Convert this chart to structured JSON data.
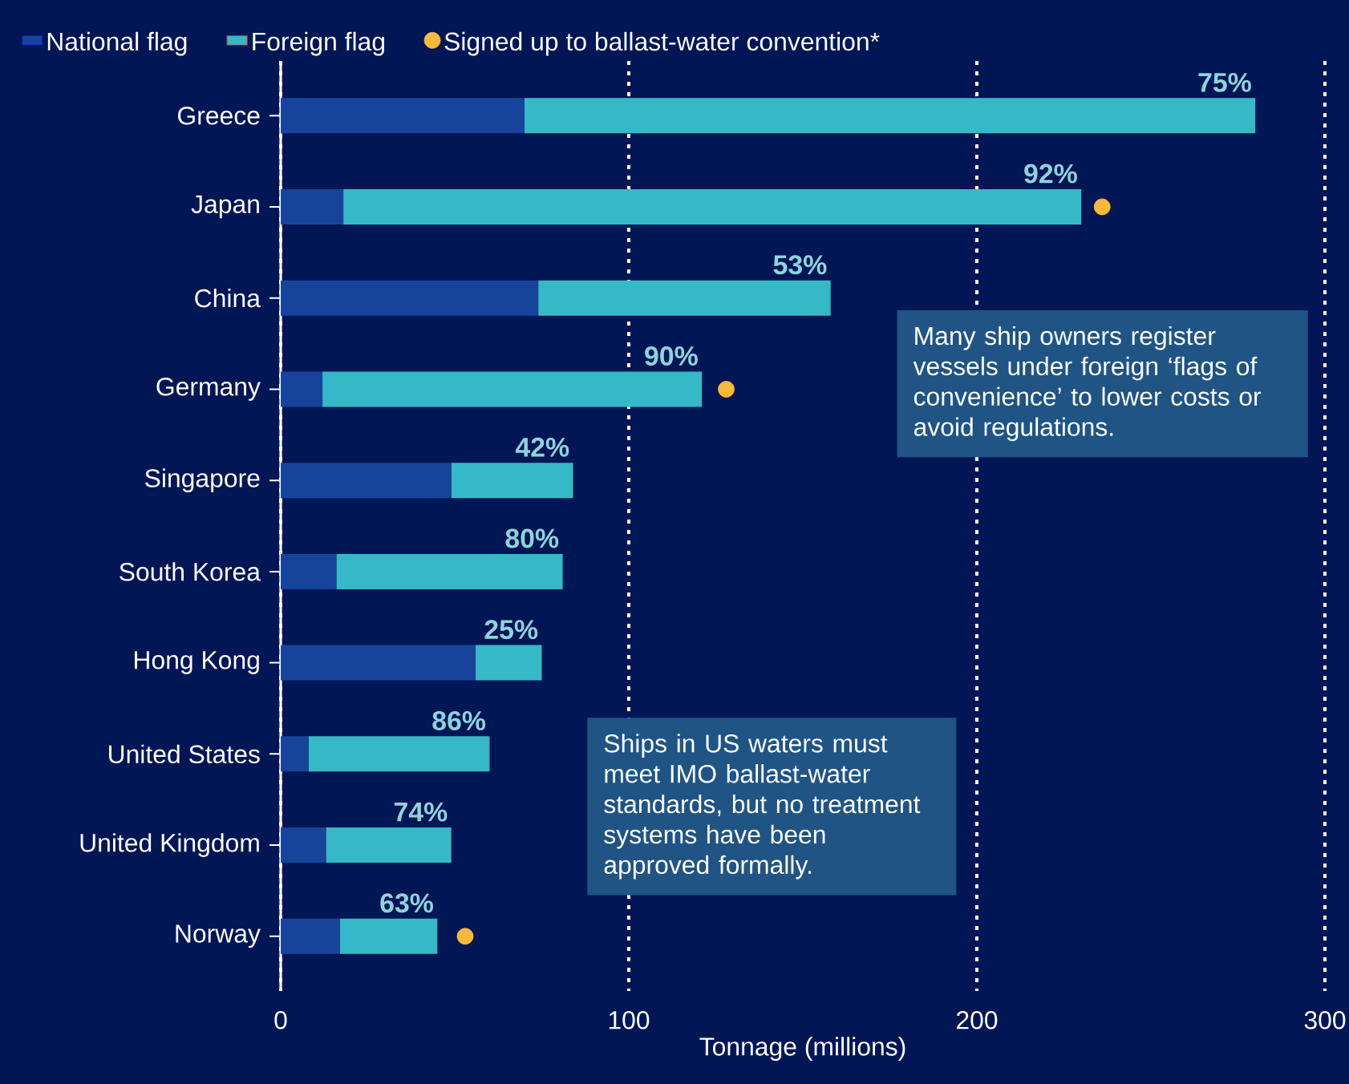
{
  "chart_data": {
    "type": "bar",
    "orientation": "horizontal",
    "stacked": true,
    "categories": [
      "Greece",
      "Japan",
      "China",
      "Germany",
      "Singapore",
      "South Korea",
      "Hong Kong",
      "United States",
      "United Kingdom",
      "Norway"
    ],
    "series": [
      {
        "name": "National flag",
        "color": "#17449a",
        "values": [
          70,
          18,
          74,
          12,
          49,
          16,
          56,
          8,
          13,
          17
        ]
      },
      {
        "name": "Foreign flag",
        "color": "#36b9c6",
        "values": [
          210,
          212,
          84,
          109,
          35,
          65,
          19,
          52,
          36,
          28
        ]
      },
      {
        "name": "Signed up to ballast-water convention*",
        "type": "scatter",
        "color": "#fbb93a",
        "values": [
          null,
          236,
          null,
          128,
          null,
          null,
          null,
          null,
          null,
          53
        ]
      }
    ],
    "xlabel": "Tonnage (millions)",
    "xlim": [
      0,
      300
    ],
    "xticks": [
      0,
      100,
      200,
      300
    ],
    "grid": "x",
    "legend": "top left",
    "annotations": [
      {
        "text": "75%",
        "x": 280,
        "y": "Greece"
      },
      {
        "text": "92%",
        "x": 230,
        "y": "Japan"
      },
      {
        "text": "53%",
        "x": 158,
        "y": "China"
      },
      {
        "text": "90%",
        "x": 121,
        "y": "Germany"
      },
      {
        "text": "42%",
        "x": 84,
        "y": "Singapore"
      },
      {
        "text": "80%",
        "x": 81,
        "y": "South Korea"
      },
      {
        "text": "25%",
        "x": 75,
        "y": "Hong Kong"
      },
      {
        "text": "86%",
        "x": 60,
        "y": "United States"
      },
      {
        "text": "74%",
        "x": 49,
        "y": "United Kingdom"
      },
      {
        "text": "63%",
        "x": 45,
        "y": "Norway"
      },
      "Many ship owners register vessels under foreign ‘flags of convenience’ to lower costs or avoid regulations.",
      "Ships in US waters must meet IMO ballast-water standards, but no treatment systems have been approved formally."
    ]
  }
}
